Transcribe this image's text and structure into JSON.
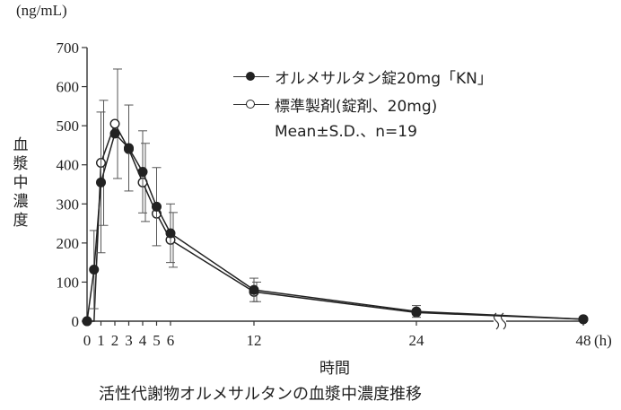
{
  "chart_data": {
    "type": "line",
    "unit_label": "(ng/mL)",
    "ylabel": "血漿中濃度",
    "xlabel": "時間",
    "caption": "活性代謝物オルメサルタンの血漿中濃度推移",
    "note": "Mean±S.D.、n=19",
    "x_unit": "(h)",
    "ylim": [
      0,
      700
    ],
    "yticks": [
      0,
      100,
      200,
      300,
      400,
      500,
      600,
      700
    ],
    "xticks": [
      {
        "value": 0,
        "label": "0"
      },
      {
        "value": 1,
        "label": "1"
      },
      {
        "value": 2,
        "label": "2"
      },
      {
        "value": 3,
        "label": "3"
      },
      {
        "value": 4,
        "label": "4"
      },
      {
        "value": 5,
        "label": "5"
      },
      {
        "value": 6,
        "label": "6"
      },
      {
        "value": 12,
        "label": "12"
      },
      {
        "value": 24,
        "label": "24"
      },
      {
        "value": 48,
        "label": "48"
      }
    ],
    "axis_break": true,
    "series": [
      {
        "name": "オルメサルタン錠20mg「KN」",
        "marker": "filled",
        "x": [
          0,
          0.5,
          1,
          2,
          3,
          4,
          5,
          6,
          12,
          24,
          48
        ],
        "y": [
          0,
          132,
          355,
          480,
          443,
          382,
          293,
          225,
          80,
          25,
          5
        ],
        "sd": [
          0,
          100,
          180,
          0,
          110,
          105,
          100,
          75,
          30,
          15,
          0
        ]
      },
      {
        "name": "標準製剤(錠剤、20mg)",
        "marker": "open",
        "x": [
          0,
          0.5,
          1,
          2,
          3,
          4,
          5,
          6,
          12,
          24,
          48
        ],
        "y": [
          0,
          0,
          405,
          505,
          440,
          355,
          275,
          208,
          75,
          22,
          5
        ],
        "sd": [
          0,
          0,
          160,
          140,
          0,
          100,
          0,
          70,
          25,
          0,
          0
        ]
      }
    ]
  }
}
